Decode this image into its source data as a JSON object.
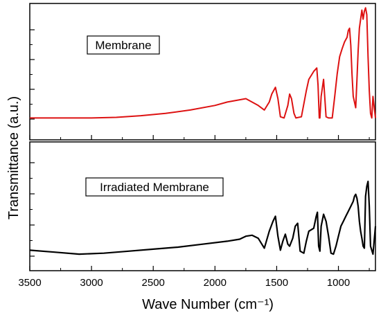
{
  "chart_data": {
    "type": "line",
    "xlabel": "Wave Number (cm⁻¹)",
    "ylabel": "Transmittance (a.u.)",
    "x_axis": {
      "reversed": true,
      "xlim": [
        3500,
        700
      ],
      "ticks": [
        3500,
        3000,
        2500,
        2000,
        1500,
        1000
      ],
      "tick_labels": [
        "3500",
        "3000",
        "2500",
        "2000",
        "1500",
        "1000"
      ]
    },
    "ylim": [
      0,
      1
    ],
    "grid": false,
    "legend": "none",
    "panels": [
      {
        "label": "Membrane",
        "color": "#dd1111",
        "series": [
          {
            "x": [
              3500,
              3200,
              3000,
              2800,
              2600,
              2400,
              2200,
              2000,
              1900,
              1800,
              1750,
              1700,
              1650,
              1600,
              1560,
              1540,
              1510,
              1490,
              1470,
              1440,
              1410,
              1395,
              1380,
              1360,
              1345,
              1300,
              1260,
              1240,
              1200,
              1175,
              1165,
              1155,
              1150,
              1140,
              1120,
              1100,
              1080,
              1050,
              1030,
              1010,
              990,
              970,
              950,
              930,
              920,
              910,
              900,
              890,
              880,
              870,
              860,
              850,
              840,
              830,
              820,
              810,
              800,
              790,
              780,
              770,
              760,
              750,
              740,
              730,
              720,
              700
            ],
            "values": [
              0.01,
              0.01,
              0.01,
              0.015,
              0.03,
              0.05,
              0.08,
              0.12,
              0.15,
              0.17,
              0.18,
              0.15,
              0.12,
              0.08,
              0.15,
              0.22,
              0.28,
              0.18,
              0.02,
              0.01,
              0.12,
              0.22,
              0.18,
              0.05,
              0.01,
              0.02,
              0.25,
              0.35,
              0.42,
              0.45,
              0.3,
              0.01,
              0.01,
              0.2,
              0.35,
              0.02,
              0.01,
              0.01,
              0.2,
              0.4,
              0.55,
              0.62,
              0.68,
              0.72,
              0.78,
              0.8,
              0.65,
              0.4,
              0.2,
              0.15,
              0.1,
              0.35,
              0.6,
              0.8,
              0.88,
              0.96,
              0.88,
              0.95,
              0.98,
              0.92,
              0.55,
              0.25,
              0.05,
              0.01,
              0.2,
              0.01
            ]
          }
        ]
      },
      {
        "label": "Irradiated Membrane",
        "color": "#000000",
        "series": [
          {
            "x": [
              3500,
              3300,
              3100,
              2900,
              2700,
              2500,
              2300,
              2100,
              1900,
              1800,
              1750,
              1700,
              1650,
              1620,
              1600,
              1560,
              1530,
              1510,
              1490,
              1470,
              1450,
              1430,
              1410,
              1395,
              1370,
              1350,
              1330,
              1310,
              1280,
              1260,
              1240,
              1200,
              1180,
              1170,
              1160,
              1150,
              1140,
              1120,
              1100,
              1080,
              1060,
              1040,
              1020,
              1000,
              980,
              960,
              940,
              920,
              900,
              880,
              870,
              860,
              850,
              840,
              830,
              820,
              810,
              800,
              790,
              780,
              770,
              760,
              750,
              740,
              720,
              700
            ],
            "values": [
              0.06,
              0.04,
              0.02,
              0.03,
              0.05,
              0.07,
              0.09,
              0.12,
              0.15,
              0.17,
              0.2,
              0.21,
              0.18,
              0.12,
              0.08,
              0.25,
              0.35,
              0.4,
              0.2,
              0.06,
              0.15,
              0.22,
              0.12,
              0.1,
              0.18,
              0.3,
              0.33,
              0.05,
              0.03,
              0.15,
              0.25,
              0.28,
              0.4,
              0.44,
              0.1,
              0.05,
              0.3,
              0.42,
              0.35,
              0.2,
              0.03,
              0.02,
              0.1,
              0.2,
              0.3,
              0.35,
              0.4,
              0.45,
              0.5,
              0.55,
              0.6,
              0.62,
              0.58,
              0.5,
              0.35,
              0.25,
              0.18,
              0.1,
              0.08,
              0.6,
              0.7,
              0.75,
              0.5,
              0.1,
              0.02,
              0.3
            ]
          }
        ]
      }
    ]
  }
}
